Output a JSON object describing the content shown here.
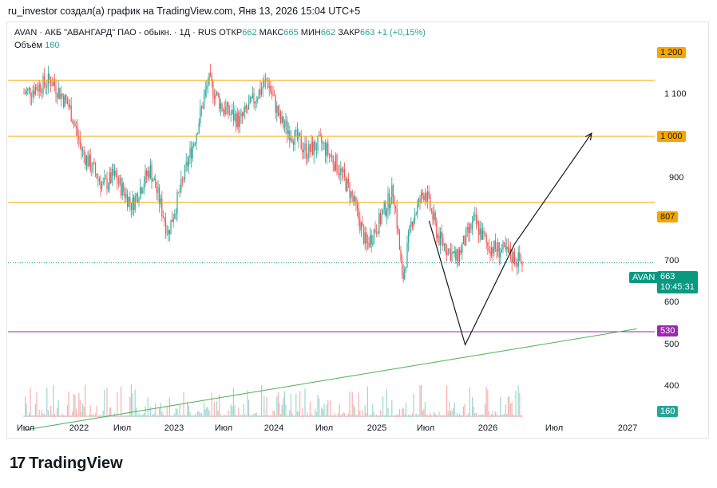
{
  "header": "ru_investor создал(а) график на TradingView.com, Янв 13, 2026 15:04 UTC+5",
  "legend": {
    "symbol": "AVAN · АКБ \"АВАНГАРД\" ПАО - обыкн. · 1Д · RUS",
    "open_label": "ОТКР",
    "open": "662",
    "high_label": "МАКС",
    "high": "665",
    "low_label": "МИН",
    "low": "662",
    "close_label": "ЗАКР",
    "close": "663",
    "change": "+1 (+0,15%)"
  },
  "volume_legend": {
    "label": "Объём",
    "value": "160"
  },
  "price_labels": {
    "level_1200": "1 200",
    "level_1000": "1 000",
    "level_807": "807",
    "level_530": "530",
    "symbol": "AVAN",
    "last": "663",
    "countdown": "10:45:31",
    "volume": "160"
  },
  "y_ticks": [
    "1 100",
    "900",
    "700",
    "600",
    "500",
    "400"
  ],
  "x_ticks": [
    "Июл",
    "2022",
    "Июл",
    "2023",
    "Июл",
    "2024",
    "Июл",
    "2025",
    "Июл",
    "2026",
    "Июл",
    "2027"
  ],
  "logo_text": "TradingView",
  "logo_mark": "17",
  "colors": {
    "up": "#26a69a",
    "down": "#ef5350",
    "level_orange": "#f7a600",
    "level_label": "#f7a600",
    "support_purple": "#9c27b0",
    "trend_green": "#4caf50",
    "last_price": "#089981"
  },
  "chart_data": {
    "type": "candlestick",
    "symbol": "AVAN",
    "timeframe": "1D",
    "scale": "log",
    "ylim": [
      360,
      1290
    ],
    "x_range": [
      "2021-06",
      "2027-03"
    ],
    "last_price": 663,
    "horizontal_levels": [
      {
        "price": 1200,
        "color": "#f7a600"
      },
      {
        "price": 1000,
        "color": "#f7a600"
      },
      {
        "price": 807,
        "color": "#f7a600"
      },
      {
        "price": 530,
        "color": "#9c27b0"
      }
    ],
    "trendline": {
      "color": "#4caf50",
      "from": [
        "2021-06-01",
        385
      ],
      "to": [
        "2027-02-01",
        535
      ]
    },
    "projection": [
      {
        "date": "2025-03-01",
        "price": 760
      },
      {
        "date": "2025-07-01",
        "price": 508
      },
      {
        "date": "2025-12-15",
        "price": 705
      },
      {
        "date": "2026-09-01",
        "price": 1010
      }
    ],
    "price_path": [
      [
        "2021-06-01",
        1150
      ],
      [
        "2021-09-01",
        1200
      ],
      [
        "2021-11-01",
        1100
      ],
      [
        "2021-12-15",
        950
      ],
      [
        "2022-02-24",
        850
      ],
      [
        "2022-04-01",
        880
      ],
      [
        "2022-06-01",
        800
      ],
      [
        "2022-08-01",
        900
      ],
      [
        "2022-10-01",
        730
      ],
      [
        "2022-11-15",
        850
      ],
      [
        "2023-01-01",
        1000
      ],
      [
        "2023-02-15",
        1200
      ],
      [
        "2023-04-01",
        1100
      ],
      [
        "2023-06-01",
        1050
      ],
      [
        "2023-08-01",
        1150
      ],
      [
        "2023-09-01",
        1200
      ],
      [
        "2023-10-15",
        1050
      ],
      [
        "2023-12-01",
        1000
      ],
      [
        "2024-01-15",
        950
      ],
      [
        "2024-03-01",
        980
      ],
      [
        "2024-05-01",
        900
      ],
      [
        "2024-06-15",
        820
      ],
      [
        "2024-08-01",
        700
      ],
      [
        "2024-09-15",
        760
      ],
      [
        "2024-11-01",
        840
      ],
      [
        "2024-12-01",
        620
      ],
      [
        "2025-01-01",
        760
      ],
      [
        "2025-02-15",
        840
      ],
      [
        "2025-04-01",
        720
      ],
      [
        "2025-06-01",
        670
      ],
      [
        "2025-08-01",
        760
      ],
      [
        "2025-09-15",
        700
      ],
      [
        "2025-11-01",
        690
      ],
      [
        "2026-01-13",
        663
      ]
    ],
    "volume_last": 160
  }
}
